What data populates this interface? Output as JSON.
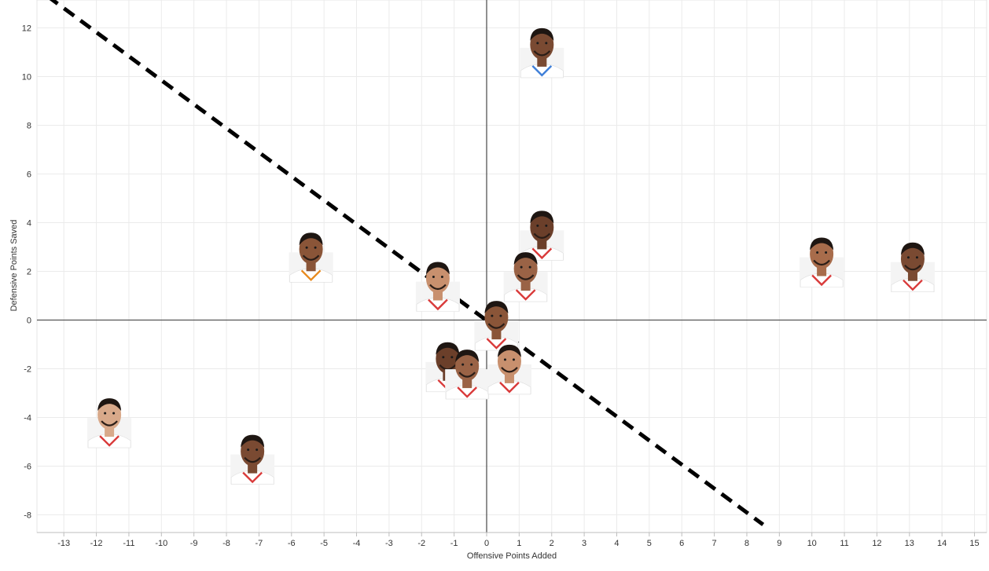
{
  "chart_data": {
    "type": "scatter",
    "title": "",
    "xlabel": "Offensive Points Added",
    "ylabel": "Defensive Points Saved",
    "xlim": [
      -14,
      15.3
    ],
    "ylim": [
      -8.7,
      13.1
    ],
    "x_ticks": [
      -13,
      -12,
      -11,
      -10,
      -9,
      -8,
      -7,
      -6,
      -5,
      -4,
      -3,
      -2,
      -1,
      0,
      1,
      2,
      3,
      4,
      5,
      6,
      7,
      8,
      9,
      10,
      11,
      12,
      13,
      14,
      15
    ],
    "y_ticks": [
      -8,
      -6,
      -4,
      -2,
      0,
      2,
      4,
      6,
      8,
      10,
      12
    ],
    "grid": true,
    "zero_lines": true,
    "reference_line": {
      "style": "dashed",
      "points": [
        [
          -13.5,
          13.3
        ],
        [
          8.5,
          -8.4
        ]
      ]
    },
    "marker": "player headshot",
    "points": [
      {
        "x": 1.7,
        "y": 10.6,
        "jersey": "blue"
      },
      {
        "x": -5.4,
        "y": 2.2,
        "jersey": "orange"
      },
      {
        "x": 1.7,
        "y": 3.1,
        "jersey": "red"
      },
      {
        "x": 1.2,
        "y": 1.4,
        "jersey": "red"
      },
      {
        "x": -1.5,
        "y": 1.0,
        "jersey": "red"
      },
      {
        "x": 10.3,
        "y": 2.0,
        "jersey": "red"
      },
      {
        "x": 13.1,
        "y": 1.8,
        "jersey": "red"
      },
      {
        "x": 0.3,
        "y": -0.6,
        "jersey": "red"
      },
      {
        "x": -1.2,
        "y": -2.3,
        "jersey": "red"
      },
      {
        "x": -0.6,
        "y": -2.6,
        "jersey": "red"
      },
      {
        "x": 0.7,
        "y": -2.4,
        "jersey": "red"
      },
      {
        "x": -11.6,
        "y": -4.6,
        "jersey": "red"
      },
      {
        "x": -7.2,
        "y": -6.1,
        "jersey": "red"
      }
    ]
  }
}
